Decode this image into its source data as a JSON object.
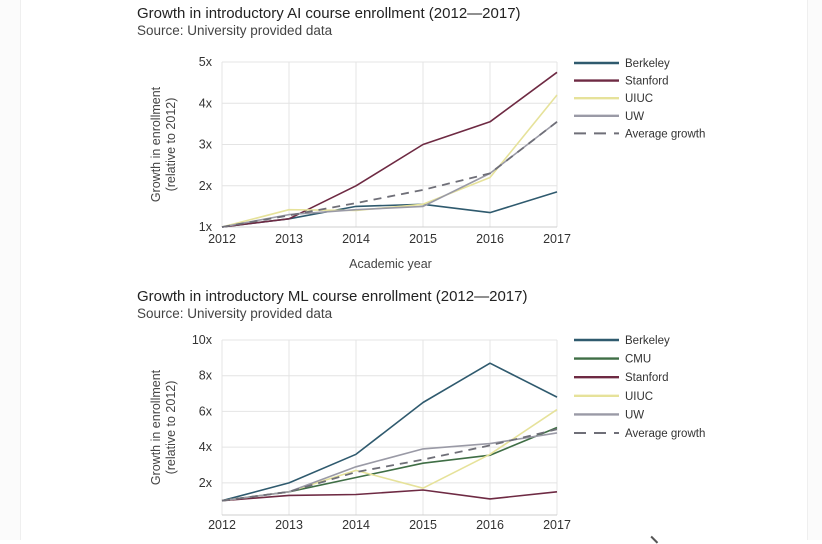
{
  "chart_data": [
    {
      "type": "line",
      "title": "Growth in introductory AI course enrollment (2012—2017)",
      "subtitle": "Source: University provided data",
      "xlabel": "Academic year",
      "ylabel": "Growth in enrollment",
      "ylabel2": "(relative to 2012)",
      "categories": [
        "2012",
        "2013",
        "2014",
        "2015",
        "2016",
        "2017"
      ],
      "ylim": [
        1,
        5
      ],
      "yticks": [
        1,
        2,
        3,
        4,
        5
      ],
      "ytick_labels": [
        "1x",
        "2x",
        "3x",
        "4x",
        "5x"
      ],
      "series": [
        {
          "name": "Berkeley",
          "color": "#2f5a6e",
          "dash": false,
          "values": [
            1.0,
            1.2,
            1.5,
            1.55,
            1.35,
            1.85
          ]
        },
        {
          "name": "Stanford",
          "color": "#6e2a43",
          "dash": false,
          "values": [
            1.0,
            1.2,
            2.0,
            3.0,
            3.55,
            4.75
          ]
        },
        {
          "name": "UIUC",
          "color": "#e6e29a",
          "dash": false,
          "values": [
            1.0,
            1.42,
            1.4,
            1.55,
            2.2,
            4.2
          ]
        },
        {
          "name": "UW",
          "color": "#9a9aa6",
          "dash": false,
          "values": [
            1.0,
            1.3,
            1.42,
            1.5,
            2.3,
            3.55
          ]
        },
        {
          "name": "Average growth",
          "color": "#6f6f78",
          "dash": true,
          "values": [
            1.0,
            1.28,
            1.58,
            1.9,
            2.3,
            3.55
          ]
        }
      ]
    },
    {
      "type": "line",
      "title": "Growth in introductory ML course enrollment (2012—2017)",
      "subtitle": "Source: University provided data",
      "xlabel": "",
      "ylabel": "Growth in enrollment",
      "ylabel2": "(relative to 2012)",
      "categories": [
        "2012",
        "2013",
        "2014",
        "2015",
        "2016",
        "2017"
      ],
      "ylim": [
        0.2,
        10
      ],
      "yticks": [
        2,
        4,
        6,
        8,
        10
      ],
      "ytick_labels": [
        "2x",
        "4x",
        "6x",
        "8x",
        "10x"
      ],
      "series": [
        {
          "name": "Berkeley",
          "color": "#2f5a6e",
          "dash": false,
          "values": [
            1.0,
            2.0,
            3.6,
            6.5,
            8.7,
            6.8
          ]
        },
        {
          "name": "CMU",
          "color": "#3f6e45",
          "dash": false,
          "values": [
            1.0,
            1.5,
            2.3,
            3.1,
            3.55,
            5.1
          ]
        },
        {
          "name": "Stanford",
          "color": "#6e2a43",
          "dash": false,
          "values": [
            1.0,
            1.3,
            1.35,
            1.6,
            1.1,
            1.5
          ]
        },
        {
          "name": "UIUC",
          "color": "#e6e29a",
          "dash": false,
          "values": [
            1.0,
            1.5,
            2.7,
            1.7,
            3.6,
            6.1
          ]
        },
        {
          "name": "UW",
          "color": "#9a9aa6",
          "dash": false,
          "values": [
            1.0,
            1.5,
            2.9,
            3.9,
            4.2,
            4.8
          ]
        },
        {
          "name": "Average growth",
          "color": "#6f6f78",
          "dash": true,
          "values": [
            1.0,
            1.5,
            2.6,
            3.3,
            4.1,
            5.0
          ]
        }
      ]
    }
  ]
}
